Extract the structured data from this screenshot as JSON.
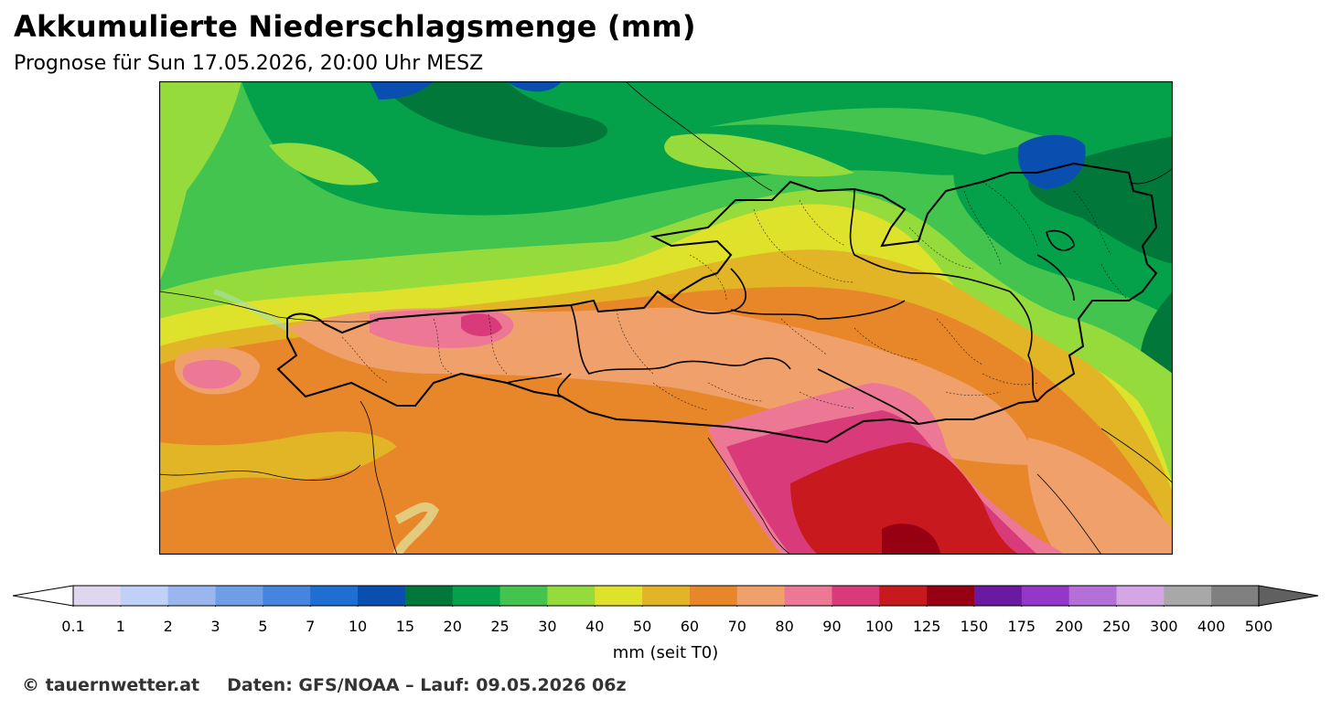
{
  "header": {
    "title": "Akkumulierte Niederschlagsmenge (mm)",
    "subtitle": "Prognose für Sun 17.05.2026, 20:00 Uhr MESZ"
  },
  "colorbar": {
    "label": "mm (seit T0)",
    "ticks": [
      "0.1",
      "1",
      "2",
      "3",
      "5",
      "7",
      "10",
      "15",
      "20",
      "25",
      "30",
      "40",
      "50",
      "60",
      "70",
      "80",
      "90",
      "100",
      "125",
      "150",
      "175",
      "200",
      "250",
      "300",
      "400",
      "500"
    ],
    "colors": [
      "#dfd6f0",
      "#c0d0f6",
      "#9ab6ef",
      "#6e9fe6",
      "#4585e0",
      "#1f6ed2",
      "#0a4fb0",
      "#02773a",
      "#04a04a",
      "#43c44e",
      "#96db3c",
      "#dfe22a",
      "#e2b526",
      "#e8862a",
      "#f0a06a",
      "#ec7896",
      "#d93a7a",
      "#c81a1e",
      "#960012",
      "#6a1aa0",
      "#9436c8",
      "#b470d8",
      "#d4a6e4",
      "#a8a8a8",
      "#808080"
    ],
    "under_color": "#ffffff",
    "over_color": "#606060"
  },
  "footer": {
    "copyright": "© tauernwetter.at",
    "source": "Daten: GFS/NOAA – Lauf: 09.05.2026 06z"
  }
}
